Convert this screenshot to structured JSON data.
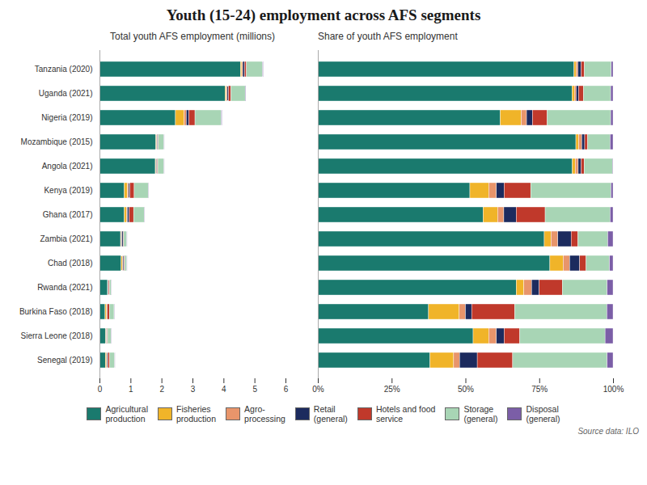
{
  "chart_data": [
    {
      "type": "bar",
      "orientation": "horizontal",
      "stacked": true,
      "grid": false,
      "legend": "bottom",
      "title": "Youth (15-24) employment across AFS segments",
      "subtitle": "Total youth AFS employment (millions)",
      "annotations": [
        "Source data: ILO"
      ],
      "categories": [
        "Tanzania (2020)",
        "Uganda (2021)",
        "Nigeria (2019)",
        "Mozambique (2015)",
        "Angola (2021)",
        "Kenya (2019)",
        "Ghana (2017)",
        "Zambia (2021)",
        "Chad (2018)",
        "Rwanda (2021)",
        "Burkina Faso (2018)",
        "Sierra Leone (2018)",
        "Senegal (2019)"
      ],
      "series": [
        {
          "name": "Agricultural\nproduction",
          "color": "#1a7a6e",
          "values": [
            4.55,
            4.05,
            2.45,
            1.82,
            1.8,
            0.8,
            0.8,
            0.68,
            0.7,
            0.26,
            0.18,
            0.2,
            0.19
          ]
        },
        {
          "name": "Fisheries\nproduction",
          "color": "#f0b429",
          "values": [
            0.04,
            0.04,
            0.28,
            0.02,
            0.02,
            0.1,
            0.07,
            0.02,
            0.04,
            0.01,
            0.05,
            0.02,
            0.04
          ]
        },
        {
          "name": "Agro-\nprocessing",
          "color": "#e8956b",
          "values": [
            0.03,
            0.03,
            0.07,
            0.02,
            0.02,
            0.04,
            0.03,
            0.02,
            0.02,
            0.01,
            0.01,
            0.01,
            0.01
          ]
        },
        {
          "name": "Retail\n(general)",
          "color": "#1c2b5e",
          "values": [
            0.06,
            0.04,
            0.08,
            0.02,
            0.02,
            0.04,
            0.06,
            0.04,
            0.03,
            0.01,
            0.01,
            0.01,
            0.03
          ]
        },
        {
          "name": "Hotels and food\nservice",
          "color": "#c0392b",
          "values": [
            0.06,
            0.08,
            0.2,
            0.02,
            0.02,
            0.14,
            0.14,
            0.02,
            0.02,
            0.03,
            0.07,
            0.02,
            0.06
          ]
        },
        {
          "name": "Storage\n(general)",
          "color": "#a8d5b5",
          "values": [
            0.52,
            0.46,
            0.85,
            0.18,
            0.2,
            0.45,
            0.34,
            0.1,
            0.07,
            0.06,
            0.15,
            0.11,
            0.16
          ]
        },
        {
          "name": "Disposal\n(general)",
          "color": "#7b5ea7",
          "values": [
            0.02,
            0.02,
            0.02,
            0.01,
            0.01,
            0.01,
            0.01,
            0.01,
            0.01,
            0.01,
            0.01,
            0.01,
            0.01
          ]
        }
      ],
      "xlim": [
        0,
        6
      ],
      "xticks": [
        0,
        1,
        2,
        3,
        4,
        5,
        6
      ]
    },
    {
      "type": "bar",
      "orientation": "horizontal",
      "stacked": true,
      "grid": false,
      "tick_labels": "x",
      "subtitle": "Share of youth AFS employment",
      "categories": [
        "Tanzania (2020)",
        "Uganda (2021)",
        "Nigeria (2019)",
        "Mozambique (2015)",
        "Angola (2021)",
        "Kenya (2019)",
        "Ghana (2017)",
        "Zambia (2021)",
        "Chad (2018)",
        "Rwanda (2021)",
        "Burkina Faso (2018)",
        "Sierra Leone (2018)",
        "Senegal (2019)"
      ],
      "series": [
        {
          "name": "Agricultural\nproduction",
          "color": "#1a7a6e",
          "values": [
            0.868,
            0.861,
            0.618,
            0.874,
            0.862,
            0.515,
            0.56,
            0.767,
            0.786,
            0.672,
            0.375,
            0.526,
            0.38
          ]
        },
        {
          "name": "Fisheries\nproduction",
          "color": "#f0b429",
          "values": [
            0.007,
            0.008,
            0.071,
            0.01,
            0.01,
            0.064,
            0.049,
            0.023,
            0.045,
            0.026,
            0.104,
            0.053,
            0.08
          ]
        },
        {
          "name": "Agro-\nprocessing",
          "color": "#e8956b",
          "values": [
            0.006,
            0.006,
            0.018,
            0.01,
            0.01,
            0.026,
            0.021,
            0.023,
            0.022,
            0.026,
            0.021,
            0.026,
            0.02
          ]
        },
        {
          "name": "Retail\n(general)",
          "color": "#1c2b5e",
          "values": [
            0.011,
            0.008,
            0.02,
            0.01,
            0.01,
            0.026,
            0.042,
            0.045,
            0.034,
            0.026,
            0.021,
            0.026,
            0.06
          ]
        },
        {
          "name": "Hotels and food\nservice",
          "color": "#c0392b",
          "values": [
            0.011,
            0.017,
            0.05,
            0.01,
            0.01,
            0.09,
            0.098,
            0.023,
            0.022,
            0.078,
            0.146,
            0.053,
            0.12
          ]
        },
        {
          "name": "Storage\n(general)",
          "color": "#a8d5b5",
          "values": [
            0.091,
            0.092,
            0.215,
            0.076,
            0.096,
            0.272,
            0.22,
            0.101,
            0.079,
            0.152,
            0.312,
            0.289,
            0.32
          ]
        },
        {
          "name": "Disposal\n(general)",
          "color": "#7b5ea7",
          "values": [
            0.006,
            0.008,
            0.008,
            0.01,
            0.002,
            0.007,
            0.01,
            0.018,
            0.012,
            0.02,
            0.021,
            0.027,
            0.02
          ]
        }
      ],
      "xlim": [
        0,
        1
      ],
      "xticks": [
        {
          "value": 0,
          "label": "0%"
        },
        {
          "value": 0.25,
          "label": "25%"
        },
        {
          "value": 0.5,
          "label": "50%"
        },
        {
          "value": 0.75,
          "label": "75%"
        },
        {
          "value": 1.0,
          "label": "100%"
        }
      ]
    }
  ]
}
